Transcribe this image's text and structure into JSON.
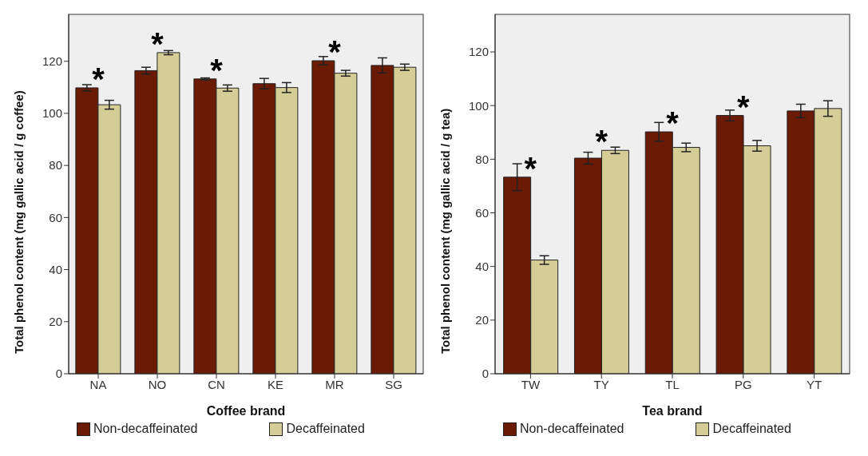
{
  "chart_data": [
    {
      "type": "bar",
      "xlabel": "Coffee brand",
      "ylabel": "Total phenol content (mg gallic acid / g coffee)",
      "categories": [
        "NA",
        "NO",
        "CN",
        "KE",
        "MR",
        "SG"
      ],
      "series": [
        {
          "name": "Non-decaffeinated",
          "color": "#6b1a06",
          "values": [
            109.8,
            116.4,
            113.2,
            111.4,
            120.2,
            118.4
          ],
          "errors": [
            1.2,
            1.3,
            0.4,
            2,
            1.6,
            2.9
          ]
        },
        {
          "name": "Decaffeinated",
          "color": "#d4cd96",
          "values": [
            103.3,
            123.3,
            109.7,
            109.9,
            115.4,
            117.7
          ],
          "errors": [
            1.7,
            0.8,
            1.2,
            1.9,
            1.1,
            1.2
          ]
        }
      ],
      "ylim": [
        0,
        138
      ],
      "yticks": [
        0,
        20,
        40,
        60,
        80,
        100,
        120
      ],
      "grid": false,
      "legend": "bottom",
      "annotations": [
        {
          "text": "*",
          "x": "NA",
          "y": 109.8
        },
        {
          "text": "*",
          "x": "NO",
          "y": 123.3
        },
        {
          "text": "*",
          "x": "CN",
          "y": 113.2
        },
        {
          "text": "*",
          "x": "MR",
          "y": 120.2
        }
      ]
    },
    {
      "type": "bar",
      "xlabel": "Tea brand",
      "ylabel": "Total phenol content (mg gallic acid / g tea)",
      "categories": [
        "TW",
        "TY",
        "TL",
        "PG",
        "YT"
      ],
      "series": [
        {
          "name": "Non-decaffeinated",
          "color": "#6b1a06",
          "values": [
            73.3,
            80.4,
            90.2,
            96.3,
            98
          ],
          "errors": [
            5,
            2.2,
            3.5,
            2,
            2.5
          ]
        },
        {
          "name": "Decaffeinated",
          "color": "#d4cd96",
          "values": [
            42.4,
            83.3,
            84.4,
            85,
            98.9
          ],
          "errors": [
            1.6,
            1.2,
            1.6,
            2,
            2.9
          ]
        }
      ],
      "ylim": [
        0,
        134
      ],
      "yticks": [
        0,
        20,
        40,
        60,
        80,
        100,
        120
      ],
      "grid": false,
      "legend": "bottom",
      "annotations": [
        {
          "text": "*",
          "x": "TW",
          "y": 73.3
        },
        {
          "text": "*",
          "x": "TY",
          "y": 83.3
        },
        {
          "text": "*",
          "x": "TL",
          "y": 90.2
        },
        {
          "text": "*",
          "x": "PG",
          "y": 96.3
        }
      ]
    }
  ]
}
